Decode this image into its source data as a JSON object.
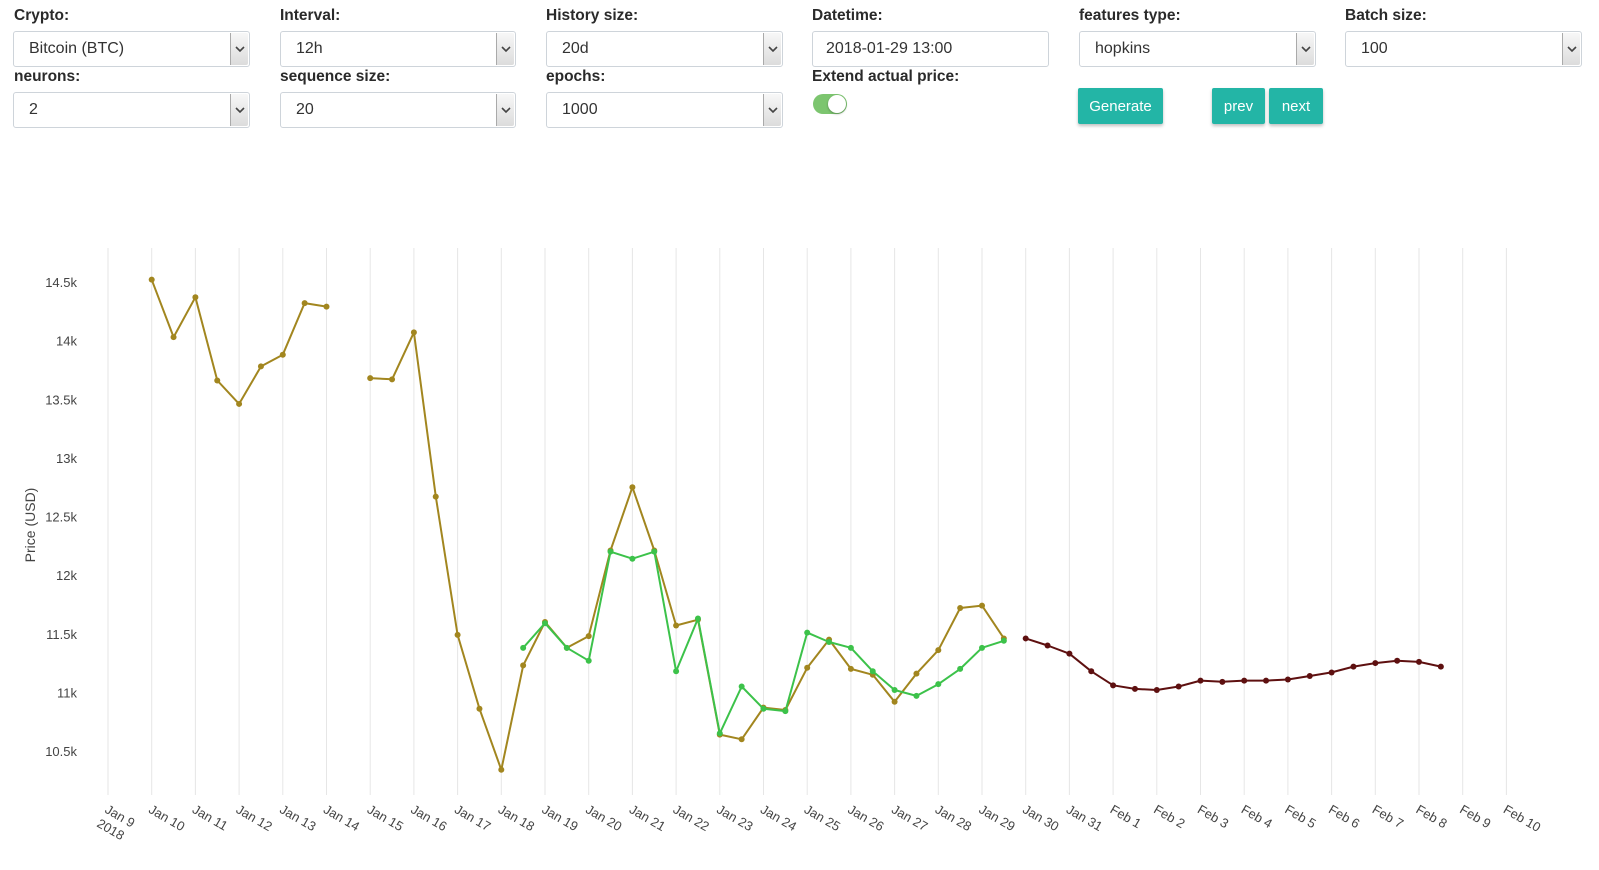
{
  "controls": {
    "crypto": {
      "label": "Crypto:",
      "value": "Bitcoin (BTC)"
    },
    "interval": {
      "label": "Interval:",
      "value": "12h"
    },
    "history_size": {
      "label": "History size:",
      "value": "20d"
    },
    "datetime": {
      "label": "Datetime:",
      "value": "2018-01-29 13:00"
    },
    "features_type": {
      "label": "features type:",
      "value": "hopkins"
    },
    "batch_size": {
      "label": "Batch size:",
      "value": "100"
    },
    "neurons": {
      "label": "neurons:",
      "value": "2"
    },
    "sequence_size": {
      "label": "sequence size:",
      "value": "20"
    },
    "epochs": {
      "label": "epochs:",
      "value": "1000"
    },
    "extend_actual_price": {
      "label": "Extend actual price:",
      "checked": true
    }
  },
  "buttons": {
    "generate": "Generate",
    "prev": "prev",
    "next": "next"
  },
  "colors": {
    "accent": "#23b5a6",
    "toggle_on": "#7cc56f",
    "actual": "#a2861f",
    "fitted": "#3cc24a",
    "forecast": "#5e1010"
  },
  "chart_data": {
    "type": "line",
    "ylabel": "Price (USD)",
    "ylim": [
      10170,
      14750
    ],
    "y_ticks": [
      10500,
      11000,
      11500,
      12000,
      12500,
      13000,
      13500,
      14000,
      14500
    ],
    "y_tick_labels": [
      "10.5k",
      "11k",
      "11.5k",
      "12k",
      "12.5k",
      "13k",
      "13.5k",
      "14k",
      "14.5k"
    ],
    "x_start": "Jan 9 2018",
    "x_ticks": [
      "Jan 9",
      "Jan 10",
      "Jan 11",
      "Jan 12",
      "Jan 13",
      "Jan 14",
      "Jan 15",
      "Jan 16",
      "Jan 17",
      "Jan 18",
      "Jan 19",
      "Jan 20",
      "Jan 21",
      "Jan 22",
      "Jan 23",
      "Jan 24",
      "Jan 25",
      "Jan 26",
      "Jan 27",
      "Jan 28",
      "Jan 29",
      "Jan 30",
      "Jan 31",
      "Feb 1",
      "Feb 2",
      "Feb 3",
      "Feb 4",
      "Feb 5",
      "Feb 6",
      "Feb 7",
      "Feb 8",
      "Feb 9",
      "Feb 10"
    ],
    "x_tick_sublabel": "2018",
    "grid": true,
    "series": [
      {
        "color": "#a2861f",
        "points": [
          [
            1.0,
            14520
          ],
          [
            1.5,
            14030
          ],
          [
            2.0,
            14370
          ],
          [
            2.5,
            13660
          ],
          [
            3.0,
            13460
          ],
          [
            3.5,
            13780
          ],
          [
            4.0,
            13880
          ],
          [
            4.5,
            14320
          ],
          [
            5.0,
            14290
          ],
          [
            6.0,
            13680
          ],
          [
            6.5,
            13670
          ],
          [
            7.0,
            14070
          ],
          [
            7.5,
            12670
          ],
          [
            8.0,
            11490
          ],
          [
            8.5,
            10860
          ],
          [
            9.0,
            10340
          ],
          [
            9.5,
            11230
          ],
          [
            10.0,
            11600
          ],
          [
            10.5,
            11380
          ],
          [
            11.0,
            11480
          ],
          [
            11.5,
            12210
          ],
          [
            12.0,
            12750
          ],
          [
            12.5,
            12210
          ],
          [
            13.0,
            11570
          ],
          [
            13.5,
            11620
          ],
          [
            14.0,
            10640
          ],
          [
            14.5,
            10600
          ],
          [
            15.0,
            10870
          ],
          [
            15.5,
            10850
          ],
          [
            16.0,
            11210
          ],
          [
            16.5,
            11450
          ],
          [
            17.0,
            11200
          ],
          [
            17.5,
            11150
          ],
          [
            18.0,
            10920
          ],
          [
            18.5,
            11160
          ],
          [
            19.0,
            11360
          ],
          [
            19.5,
            11720
          ],
          [
            20.0,
            11740
          ],
          [
            20.5,
            11460
          ]
        ]
      },
      {
        "color": "#3cc24a",
        "points": [
          [
            9.5,
            11380
          ],
          [
            10.0,
            11590
          ],
          [
            10.5,
            11380
          ],
          [
            11.0,
            11270
          ],
          [
            11.5,
            12200
          ],
          [
            12.0,
            12140
          ],
          [
            12.5,
            12200
          ],
          [
            13.0,
            11180
          ],
          [
            13.5,
            11630
          ],
          [
            14.0,
            10650
          ],
          [
            14.5,
            11050
          ],
          [
            15.0,
            10860
          ],
          [
            15.5,
            10840
          ],
          [
            16.0,
            11510
          ],
          [
            16.5,
            11430
          ],
          [
            17.0,
            11380
          ],
          [
            17.5,
            11180
          ],
          [
            18.0,
            11020
          ],
          [
            18.5,
            10970
          ],
          [
            19.0,
            11070
          ],
          [
            19.5,
            11200
          ],
          [
            20.0,
            11380
          ],
          [
            20.5,
            11440
          ]
        ]
      },
      {
        "color": "#5e1010",
        "points": [
          [
            21.0,
            11460
          ],
          [
            21.5,
            11400
          ],
          [
            22.0,
            11330
          ],
          [
            22.5,
            11180
          ],
          [
            23.0,
            11060
          ],
          [
            23.5,
            11030
          ],
          [
            24.0,
            11020
          ],
          [
            24.5,
            11050
          ],
          [
            25.0,
            11100
          ],
          [
            25.5,
            11090
          ],
          [
            26.0,
            11100
          ],
          [
            26.5,
            11100
          ],
          [
            27.0,
            11110
          ],
          [
            27.5,
            11140
          ],
          [
            28.0,
            11170
          ],
          [
            28.5,
            11220
          ],
          [
            29.0,
            11250
          ],
          [
            29.5,
            11270
          ],
          [
            30.0,
            11260
          ],
          [
            30.5,
            11220
          ]
        ]
      }
    ]
  }
}
